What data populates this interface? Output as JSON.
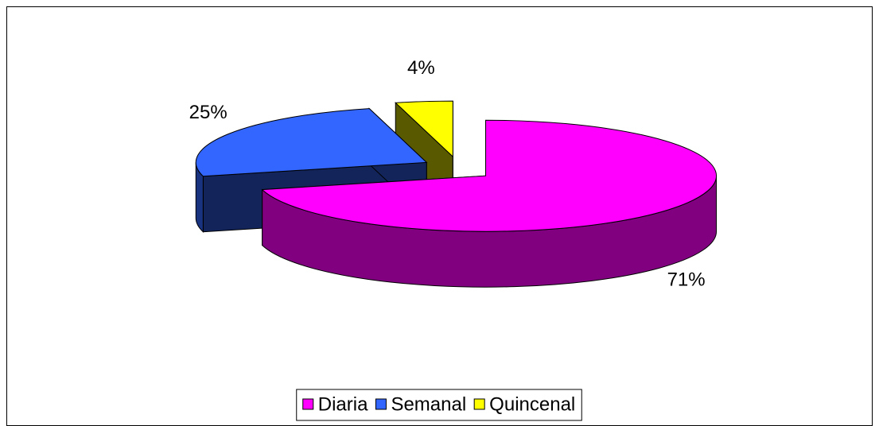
{
  "chart_data": {
    "type": "pie3d",
    "categories": [
      "Diaria",
      "Semanal",
      "Quincenal"
    ],
    "values": [
      71,
      25,
      4
    ],
    "value_labels": [
      "71%",
      "25%",
      "4%"
    ],
    "colors": [
      "#ff00ff",
      "#3366ff",
      "#ffff00"
    ],
    "legend": "bottom"
  }
}
